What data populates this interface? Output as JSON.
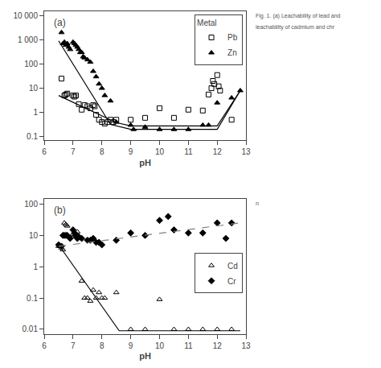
{
  "chart_data": [
    {
      "type": "scatter",
      "title": "(a)",
      "x_label": "pH",
      "xlim": [
        6,
        13
      ],
      "xticks": [
        6,
        7,
        8,
        9,
        10,
        11,
        12,
        13
      ],
      "ylim": [
        0.07,
        15000
      ],
      "yticks": [
        0.1,
        1,
        10,
        100,
        {
          "value": 1000,
          "label": "1 000"
        },
        {
          "value": 10000,
          "label": "10 000"
        }
      ],
      "log": "y",
      "grid": false,
      "legend": "upper right",
      "legend_title": "Metal",
      "series": [
        {
          "name": "Pb",
          "type": "scatter",
          "marker": "square-open",
          "color": "black",
          "x": [
            6.6,
            6.7,
            6.75,
            6.8,
            7.0,
            7.05,
            7.1,
            7.2,
            7.3,
            7.4,
            7.5,
            7.6,
            7.7,
            7.75,
            7.8,
            7.9,
            8.0,
            8.1,
            8.2,
            8.3,
            8.4,
            8.5,
            9.0,
            9.5,
            10.0,
            10.5,
            11.0,
            11.5,
            11.7,
            11.8,
            11.85,
            11.9,
            12.0,
            12.05,
            12.1,
            12.5
          ],
          "values": [
            25,
            5,
            5.5,
            6,
            5,
            4.5,
            5,
            2.2,
            1.3,
            2.0,
            1.8,
            1.5,
            2.0,
            1.8,
            0.8,
            0.5,
            0.4,
            0.35,
            0.4,
            0.5,
            0.4,
            0.5,
            0.5,
            0.6,
            1.5,
            0.6,
            1.3,
            1.2,
            5.5,
            10,
            20,
            15,
            35,
            12,
            8,
            0.5
          ]
        },
        {
          "name": "Zn",
          "type": "scatter",
          "marker": "triangle-up",
          "color": "black",
          "x": [
            6.6,
            6.65,
            6.7,
            6.75,
            6.8,
            6.85,
            6.9,
            7.0,
            7.05,
            7.1,
            7.15,
            7.2,
            7.25,
            7.3,
            7.35,
            7.4,
            7.5,
            7.6,
            7.7,
            7.8,
            7.9,
            8.0,
            8.1,
            8.3,
            8.5,
            9.0,
            9.1,
            9.5,
            10.0,
            10.5,
            11.0,
            11.5,
            11.7,
            12.0,
            12.5,
            12.8
          ],
          "values": [
            2000,
            700,
            800,
            600,
            700,
            500,
            400,
            800,
            700,
            600,
            500,
            400,
            300,
            300,
            200,
            180,
            150,
            120,
            50,
            30,
            15,
            10,
            5,
            3,
            0.4,
            0.3,
            0.2,
            0.25,
            0.2,
            0.2,
            0.2,
            0.3,
            0.3,
            2.5,
            4.0,
            8.0
          ]
        },
        {
          "type": "line",
          "line_style": "solid",
          "color": "black",
          "x": [
            6.5,
            8.5,
            9.0,
            12.0,
            12.8
          ],
          "values": [
            5.0,
            0.38,
            0.28,
            0.28,
            8.0
          ]
        },
        {
          "type": "line",
          "line_style": "solid",
          "color": "black",
          "x": [
            6.5,
            8.3,
            9.0,
            12.0,
            12.8
          ],
          "values": [
            900,
            0.32,
            0.2,
            0.2,
            8.0
          ]
        }
      ],
      "annotations": [
        "Fig. 1. (a) Leachability of lead and",
        "leachability of cadmium and chr"
      ]
    },
    {
      "type": "scatter",
      "title": "(b)",
      "x_label": "pH",
      "xlim": [
        6,
        13
      ],
      "xticks": [
        6,
        7,
        8,
        9,
        10,
        11,
        12,
        13
      ],
      "ylim": [
        0.007,
        150
      ],
      "yticks": [
        0.01,
        0.1,
        1,
        10,
        100
      ],
      "log": "y",
      "grid": false,
      "legend": "center right",
      "series": [
        {
          "name": "Cd",
          "type": "scatter",
          "marker": "triangle-up-open",
          "color": "black",
          "x": [
            6.5,
            6.6,
            6.65,
            6.7,
            6.75,
            6.8,
            7.0,
            7.05,
            7.1,
            7.15,
            7.2,
            7.3,
            7.4,
            7.5,
            7.6,
            7.7,
            7.8,
            7.9,
            8.0,
            8.1,
            8.5,
            9.0,
            9.5,
            10.0,
            10.5,
            11.0,
            11.5,
            12.0,
            12.5
          ],
          "values": [
            4.5,
            4.0,
            3.5,
            25,
            22,
            20,
            11,
            10,
            9,
            13,
            8,
            0.35,
            0.1,
            0.1,
            0.08,
            0.18,
            0.1,
            0.15,
            0.1,
            0.1,
            0.15,
            0.01,
            0.01,
            0.09,
            0.01,
            0.01,
            0.01,
            0.01,
            0.01
          ]
        },
        {
          "name": "Cr",
          "type": "scatter",
          "marker": "diamond",
          "color": "black",
          "x": [
            6.5,
            6.6,
            6.65,
            6.7,
            6.75,
            6.8,
            6.9,
            7.0,
            7.05,
            7.1,
            7.15,
            7.2,
            7.3,
            7.5,
            7.6,
            7.7,
            7.8,
            7.9,
            8.0,
            8.5,
            9.0,
            9.5,
            10.0,
            10.3,
            10.5,
            11.0,
            11.5,
            12.0,
            12.3,
            12.5
          ],
          "values": [
            5.0,
            4.5,
            10,
            10,
            10,
            10,
            8,
            15,
            12,
            10,
            8,
            9,
            8,
            7,
            7,
            8,
            6,
            6,
            5,
            7,
            12,
            10,
            30,
            40,
            15,
            12,
            12,
            25,
            8,
            25
          ]
        },
        {
          "type": "line",
          "line_style": "solid",
          "color": "black",
          "x": [
            6.5,
            8.6,
            9.0,
            12.8
          ],
          "values": [
            5.0,
            0.009,
            0.009,
            0.009
          ]
        },
        {
          "type": "line",
          "line_style": "dashed",
          "color": "gray",
          "x": [
            6.5,
            12.8
          ],
          "values": [
            4.5,
            25
          ]
        }
      ],
      "annotations": [
        "n"
      ]
    }
  ]
}
